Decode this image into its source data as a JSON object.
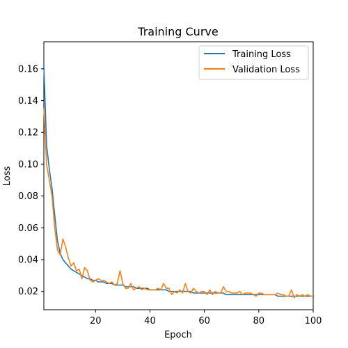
{
  "chart_data": {
    "type": "line",
    "title": "Training Curve",
    "xlabel": "Epoch",
    "ylabel": "Loss",
    "xlim": [
      1,
      100
    ],
    "ylim": [
      0.0085,
      0.177
    ],
    "xticks": [
      20,
      40,
      60,
      80,
      100
    ],
    "yticks": [
      0.02,
      0.04,
      0.06,
      0.08,
      0.1,
      0.12,
      0.14,
      0.16
    ],
    "ytick_labels": [
      "0.02",
      "0.04",
      "0.06",
      "0.08",
      "0.10",
      "0.12",
      "0.14",
      "0.16"
    ],
    "grid": false,
    "legend_position": "top-right",
    "x": [
      1,
      2,
      3,
      4,
      5,
      6,
      7,
      8,
      9,
      10,
      11,
      12,
      13,
      14,
      15,
      16,
      17,
      18,
      19,
      20,
      21,
      22,
      23,
      24,
      25,
      26,
      27,
      28,
      29,
      30,
      31,
      32,
      33,
      34,
      35,
      36,
      37,
      38,
      39,
      40,
      41,
      42,
      43,
      44,
      45,
      46,
      47,
      48,
      49,
      50,
      51,
      52,
      53,
      54,
      55,
      56,
      57,
      58,
      59,
      60,
      61,
      62,
      63,
      64,
      65,
      66,
      67,
      68,
      69,
      70,
      71,
      72,
      73,
      74,
      75,
      76,
      77,
      78,
      79,
      80,
      81,
      82,
      83,
      84,
      85,
      86,
      87,
      88,
      89,
      90,
      91,
      92,
      93,
      94,
      95,
      96,
      97,
      98,
      99,
      100
    ],
    "series": [
      {
        "name": "Training Loss",
        "color": "#1f77b4",
        "values": [
          0.162,
          0.112,
          0.097,
          0.085,
          0.068,
          0.052,
          0.044,
          0.04,
          0.038,
          0.036,
          0.034,
          0.033,
          0.032,
          0.031,
          0.03,
          0.029,
          0.028,
          0.028,
          0.027,
          0.027,
          0.026,
          0.026,
          0.026,
          0.025,
          0.025,
          0.025,
          0.024,
          0.024,
          0.024,
          0.024,
          0.023,
          0.023,
          0.023,
          0.023,
          0.022,
          0.022,
          0.022,
          0.022,
          0.022,
          0.021,
          0.021,
          0.021,
          0.021,
          0.021,
          0.021,
          0.021,
          0.02,
          0.02,
          0.02,
          0.02,
          0.02,
          0.02,
          0.02,
          0.02,
          0.02,
          0.019,
          0.019,
          0.019,
          0.019,
          0.019,
          0.019,
          0.019,
          0.019,
          0.019,
          0.019,
          0.019,
          0.019,
          0.018,
          0.018,
          0.018,
          0.018,
          0.018,
          0.018,
          0.018,
          0.018,
          0.018,
          0.018,
          0.018,
          0.018,
          0.018,
          0.018,
          0.018,
          0.018,
          0.018,
          0.018,
          0.018,
          0.017,
          0.017,
          0.017,
          0.017,
          0.017,
          0.017,
          0.017,
          0.017,
          0.017,
          0.017,
          0.017,
          0.017,
          0.017,
          0.017
        ]
      },
      {
        "name": "Validation Loss",
        "color": "#ff7f0e",
        "values": [
          0.135,
          0.1,
          0.09,
          0.08,
          0.06,
          0.046,
          0.043,
          0.053,
          0.048,
          0.041,
          0.036,
          0.038,
          0.033,
          0.034,
          0.028,
          0.035,
          0.033,
          0.027,
          0.026,
          0.027,
          0.028,
          0.027,
          0.027,
          0.026,
          0.025,
          0.026,
          0.024,
          0.025,
          0.033,
          0.025,
          0.022,
          0.022,
          0.025,
          0.021,
          0.022,
          0.023,
          0.021,
          0.022,
          0.021,
          0.021,
          0.021,
          0.021,
          0.022,
          0.021,
          0.025,
          0.022,
          0.022,
          0.018,
          0.02,
          0.019,
          0.021,
          0.019,
          0.025,
          0.02,
          0.019,
          0.022,
          0.02,
          0.019,
          0.02,
          0.02,
          0.018,
          0.021,
          0.018,
          0.02,
          0.019,
          0.019,
          0.023,
          0.02,
          0.02,
          0.019,
          0.019,
          0.019,
          0.02,
          0.018,
          0.019,
          0.019,
          0.019,
          0.018,
          0.017,
          0.019,
          0.019,
          0.018,
          0.018,
          0.018,
          0.018,
          0.018,
          0.019,
          0.018,
          0.018,
          0.017,
          0.017,
          0.021,
          0.016,
          0.018,
          0.017,
          0.018,
          0.017,
          0.018,
          0.017,
          0.017
        ]
      }
    ]
  }
}
